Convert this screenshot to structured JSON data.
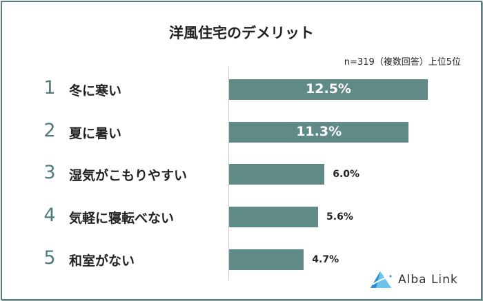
{
  "chart_data": {
    "type": "bar",
    "orientation": "horizontal",
    "title": "洋風住宅のデメリット",
    "note": "n=319（複数回答）上位5位",
    "ranks": [
      "1",
      "2",
      "3",
      "4",
      "5"
    ],
    "categories": [
      "冬に寒い",
      "夏に暑い",
      "湿気がこもりやすい",
      "気軽に寝転べない",
      "和室がない"
    ],
    "values": [
      12.5,
      11.3,
      6.0,
      5.6,
      4.7
    ],
    "value_labels": [
      "12.5%",
      "11.3%",
      "6.0%",
      "5.6%",
      "4.7%"
    ],
    "xlabel": "",
    "ylabel": "",
    "bar_color": "#5f8a86"
  },
  "logo": {
    "text": "Alba Link"
  }
}
